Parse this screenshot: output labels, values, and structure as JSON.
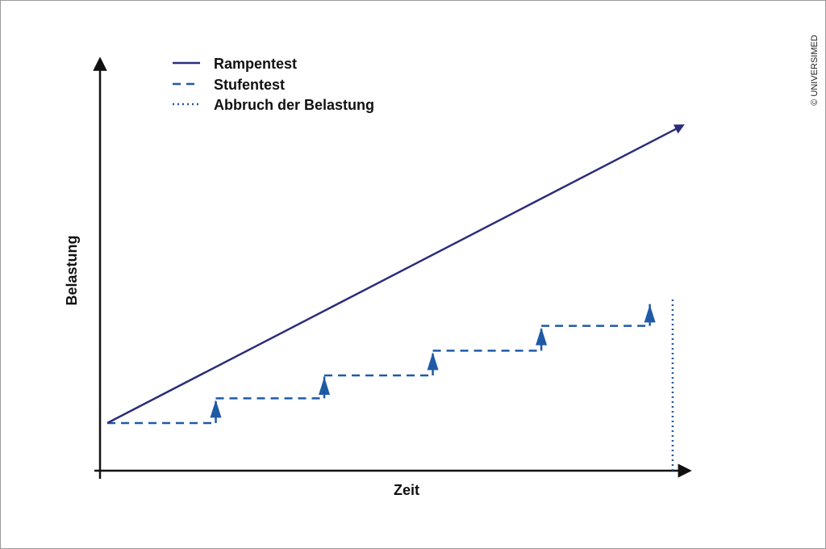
{
  "credit": "© UNIVERSIMED",
  "chart_data": {
    "type": "line",
    "xlabel": "Zeit",
    "ylabel": "Belastung",
    "colors": {
      "ramp": "#2b2c7a",
      "step": "#1f5aa6",
      "arrow": "#1f5aa6",
      "abort": "#1f5aa6",
      "axis": "#111111"
    },
    "legend_position": "top-left",
    "axis_ticks": "none",
    "grid": false,
    "series": [
      {
        "name": "Rampentest",
        "style": "solid",
        "x": [
          0,
          1
        ],
        "y": [
          0.125,
          0.9
        ]
      },
      {
        "name": "Stufentest",
        "style": "dashed",
        "x": [
          0,
          0.19,
          0.19,
          0.38,
          0.38,
          0.57,
          0.57,
          0.76,
          0.76,
          0.95,
          0.95
        ],
        "y": [
          0.125,
          0.125,
          0.19,
          0.19,
          0.25,
          0.25,
          0.315,
          0.315,
          0.38,
          0.38,
          0.44
        ]
      },
      {
        "name": "Abbruch der Belastung",
        "style": "dotted",
        "x": [
          0.99,
          0.99
        ],
        "y": [
          0,
          0.455
        ]
      }
    ],
    "step_arrows_x": [
      0.19,
      0.38,
      0.57,
      0.76,
      0.95
    ]
  }
}
